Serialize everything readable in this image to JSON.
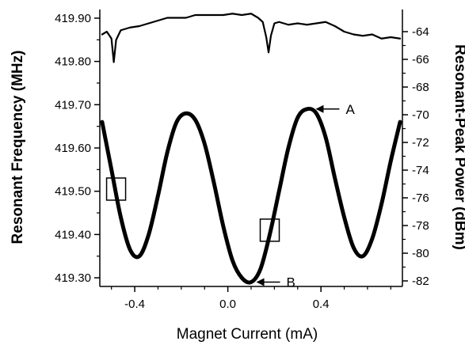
{
  "chart_data": {
    "type": "line",
    "xlabel": "Magnet Current (mA)",
    "ylabel_left": "Resonant Frequency (MHz)",
    "ylabel_right": "Resonant-Peak Power (dBm)",
    "xlim": [
      -0.55,
      0.75
    ],
    "ylim_left": [
      419.28,
      419.92
    ],
    "ylim_right": [
      -82.4,
      -62.4
    ],
    "x_ticks": [
      -0.4,
      0.0,
      0.4
    ],
    "x_tick_labels": [
      "-0.4",
      "0.0",
      "0.4"
    ],
    "left_ticks": [
      419.3,
      419.4,
      419.5,
      419.6,
      419.7,
      419.8,
      419.9
    ],
    "left_tick_labels": [
      "419.30",
      "419.40",
      "419.50",
      "419.60",
      "419.70",
      "419.80",
      "419.90"
    ],
    "right_ticks": [
      -82,
      -80,
      -78,
      -76,
      -74,
      -72,
      -70,
      -68,
      -66,
      -64
    ],
    "right_tick_labels": [
      "-82",
      "-80",
      "-78",
      "-76",
      "-74",
      "-72",
      "-70",
      "-68",
      "-66",
      "-64"
    ],
    "grid": false,
    "series": [
      {
        "axis": "left",
        "line_color": "#000000",
        "x": [
          -0.54,
          -0.5,
          -0.46,
          -0.42,
          -0.38,
          -0.34,
          -0.3,
          -0.26,
          -0.22,
          -0.18,
          -0.14,
          -0.1,
          -0.06,
          -0.02,
          0.02,
          0.06,
          0.1,
          0.14,
          0.18,
          0.22,
          0.26,
          0.3,
          0.34,
          0.38,
          0.42,
          0.46,
          0.5,
          0.54,
          0.58,
          0.62,
          0.66,
          0.7,
          0.74
        ],
        "y": [
          419.66,
          419.55,
          419.44,
          419.365,
          419.35,
          419.4,
          419.49,
          419.59,
          419.66,
          419.68,
          419.665,
          419.61,
          419.52,
          419.42,
          419.34,
          419.3,
          419.29,
          419.32,
          419.4,
          419.5,
          419.6,
          419.67,
          419.69,
          419.68,
          419.625,
          419.53,
          419.44,
          419.37,
          419.35,
          419.39,
          419.47,
          419.57,
          419.66
        ]
      },
      {
        "axis": "right",
        "line_color": "#000000",
        "x": [
          -0.54,
          -0.52,
          -0.5,
          -0.49,
          -0.48,
          -0.46,
          -0.42,
          -0.38,
          -0.34,
          -0.3,
          -0.26,
          -0.22,
          -0.18,
          -0.14,
          -0.1,
          -0.06,
          -0.02,
          0.02,
          0.06,
          0.1,
          0.13,
          0.15,
          0.165,
          0.175,
          0.185,
          0.2,
          0.22,
          0.26,
          0.3,
          0.34,
          0.38,
          0.42,
          0.46,
          0.5,
          0.54,
          0.58,
          0.62,
          0.66,
          0.7,
          0.74
        ],
        "y": [
          -64.2,
          -64.0,
          -64.5,
          -66.2,
          -64.6,
          -63.9,
          -63.7,
          -63.6,
          -63.4,
          -63.2,
          -63.0,
          -63.0,
          -63.0,
          -62.8,
          -62.8,
          -62.8,
          -62.8,
          -62.7,
          -62.8,
          -62.7,
          -63.0,
          -63.3,
          -64.4,
          -65.5,
          -64.3,
          -63.4,
          -63.3,
          -63.5,
          -63.4,
          -63.5,
          -63.4,
          -63.3,
          -63.6,
          -64.0,
          -64.2,
          -64.3,
          -64.2,
          -64.5,
          -64.4,
          -64.5
        ]
      }
    ],
    "annotations": [
      {
        "label": "A",
        "x": 0.35,
        "axis": "left",
        "y": 419.69
      },
      {
        "label": "B",
        "x": 0.095,
        "axis": "left",
        "y": 419.29
      }
    ],
    "markers": [
      {
        "x": -0.48,
        "axis": "left",
        "y": 419.505
      },
      {
        "x": 0.18,
        "axis": "left",
        "y": 419.41
      }
    ]
  }
}
